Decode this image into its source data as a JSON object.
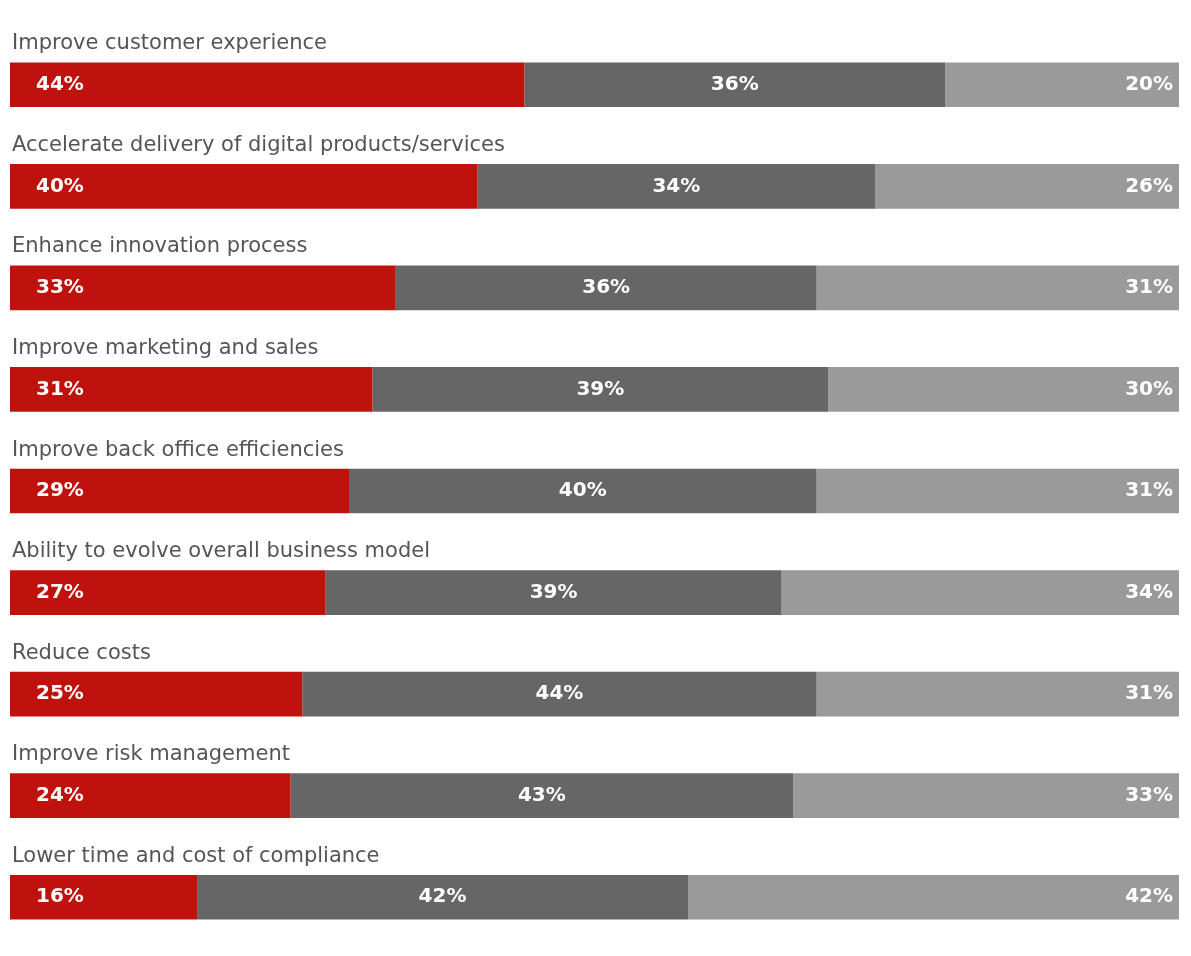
{
  "chart_data": {
    "type": "bar",
    "orientation": "horizontal",
    "stacked": true,
    "categories": [
      "Improve customer experience",
      "Accelerate delivery of digital products/services",
      "Enhance innovation process",
      "Improve marketing and sales",
      "Improve back office efficiencies",
      "Ability to evolve overall business model",
      "Reduce costs",
      "Improve risk management",
      "Lower time and cost of compliance"
    ],
    "series": [
      {
        "color": "#c0120c",
        "values": [
          44,
          40,
          33,
          31,
          29,
          27,
          25,
          24,
          16
        ],
        "value_labels": [
          "44%",
          "40%",
          "33%",
          "31%",
          "29%",
          "27%",
          "25%",
          "24%",
          "16%"
        ]
      },
      {
        "color": "#666666",
        "values": [
          36,
          34,
          36,
          39,
          40,
          39,
          44,
          43,
          42
        ],
        "value_labels": [
          "36%",
          "34%",
          "36%",
          "39%",
          "40%",
          "39%",
          "44%",
          "43%",
          "42%"
        ]
      },
      {
        "color": "#9a9a9a",
        "values": [
          20,
          26,
          31,
          30,
          31,
          34,
          31,
          33,
          42
        ],
        "value_labels": [
          "20%",
          "26%",
          "31%",
          "30%",
          "31%",
          "34%",
          "31%",
          "33%",
          "42%"
        ]
      }
    ]
  }
}
